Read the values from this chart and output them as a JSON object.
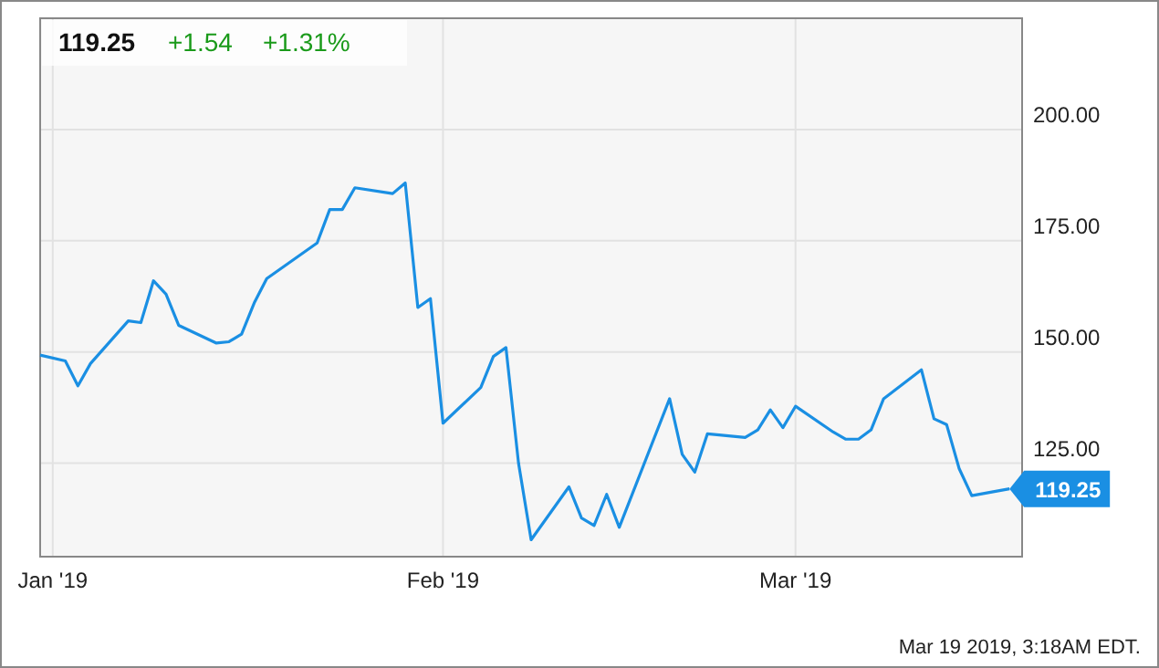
{
  "chart_data": {
    "type": "line",
    "x": [
      "2018-12-31",
      "2019-01-02",
      "2019-01-03",
      "2019-01-04",
      "2019-01-07",
      "2019-01-08",
      "2019-01-09",
      "2019-01-10",
      "2019-01-11",
      "2019-01-14",
      "2019-01-15",
      "2019-01-16",
      "2019-01-17",
      "2019-01-18",
      "2019-01-22",
      "2019-01-23",
      "2019-01-24",
      "2019-01-25",
      "2019-01-28",
      "2019-01-29",
      "2019-01-30",
      "2019-01-31",
      "2019-02-01",
      "2019-02-04",
      "2019-02-05",
      "2019-02-06",
      "2019-02-07",
      "2019-02-08",
      "2019-02-11",
      "2019-02-12",
      "2019-02-13",
      "2019-02-14",
      "2019-02-15",
      "2019-02-19",
      "2019-02-20",
      "2019-02-21",
      "2019-02-22",
      "2019-02-25",
      "2019-02-26",
      "2019-02-27",
      "2019-02-28",
      "2019-03-01",
      "2019-03-04",
      "2019-03-05",
      "2019-03-06",
      "2019-03-07",
      "2019-03-08",
      "2019-03-11",
      "2019-03-12",
      "2019-03-13",
      "2019-03-14",
      "2019-03-15",
      "2019-03-18"
    ],
    "series": [
      {
        "color": "#1a8fe3",
        "values": [
          149.3,
          148,
          142.4,
          147.4,
          157,
          156.6,
          166,
          163,
          156,
          152,
          152.3,
          154,
          161,
          166.5,
          174.5,
          182,
          182,
          186.9,
          185.6,
          188,
          160,
          162,
          134,
          142,
          149,
          151,
          125,
          107.8,
          119.7,
          112.7,
          111,
          118,
          110.6,
          139.5,
          127,
          123,
          131.6,
          130.8,
          132.5,
          137,
          133,
          137.8,
          132,
          130.4,
          130.4,
          132.5,
          139.5,
          146,
          135,
          133.7,
          123.8,
          117.7,
          119.25
        ]
      }
    ],
    "xlim": [
      "2018-12-31",
      "2019-03-19"
    ],
    "xticks": [
      {
        "value": "2019-01-01",
        "label": "Jan '19"
      },
      {
        "value": "2019-02-01",
        "label": "Feb '19"
      },
      {
        "value": "2019-03-01",
        "label": "Mar '19"
      }
    ],
    "ylim": [
      104,
      225
    ],
    "yticks": [
      {
        "value": 125,
        "label": "125.00"
      },
      {
        "value": 150,
        "label": "150.00"
      },
      {
        "value": 175,
        "label": "175.00"
      },
      {
        "value": 200,
        "label": "200.00"
      }
    ],
    "grid": true,
    "annotations": [
      "119.25",
      "+1.54",
      "+1.31%",
      "Mar 19 2019, 3:18AM EDT.",
      {
        "text": "119.25",
        "x": "2019-03-18",
        "y": 119.25
      }
    ]
  }
}
